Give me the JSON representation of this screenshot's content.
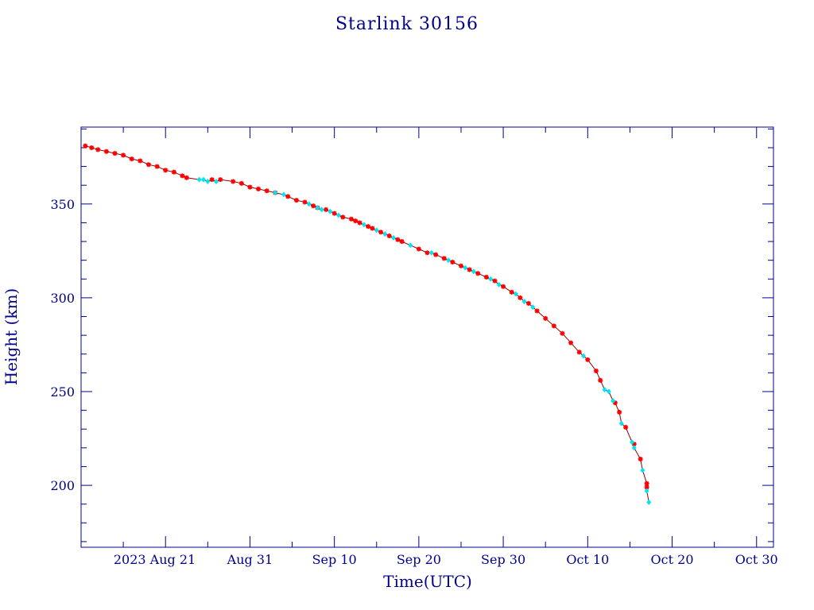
{
  "chart_data": {
    "type": "line",
    "title": "Starlink 30156",
    "xlabel": "Time(UTC)",
    "ylabel": "Height (km)",
    "xlim": [
      "2023-08-11",
      "2023-11-01"
    ],
    "ylim": [
      167,
      391
    ],
    "grid": false,
    "x_ticks": [
      {
        "date": "2023-08-21",
        "label": "2023 Aug 21"
      },
      {
        "date": "2023-08-31",
        "label": "Aug 31"
      },
      {
        "date": "2023-09-10",
        "label": "Sep 10"
      },
      {
        "date": "2023-09-20",
        "label": "Sep 20"
      },
      {
        "date": "2023-09-30",
        "label": "Sep 30"
      },
      {
        "date": "2023-10-10",
        "label": "Oct 10"
      },
      {
        "date": "2023-10-20",
        "label": "Oct 20"
      },
      {
        "date": "2023-10-30",
        "label": "Oct 30"
      }
    ],
    "y_ticks": [
      200,
      250,
      300,
      350
    ],
    "colors": {
      "axis": "#00008b",
      "line": "#8b0000",
      "marker_a": "#ff0000",
      "marker_b": "#00e5ee"
    },
    "series": [
      {
        "marker": "star",
        "color": "#ff0000",
        "points": [
          [
            "2023-08-11 12:00",
            381
          ],
          [
            "2023-08-12 06:00",
            380
          ],
          [
            "2023-08-13 00:00",
            379
          ],
          [
            "2023-08-14 00:00",
            378
          ],
          [
            "2023-08-15 00:00",
            377
          ],
          [
            "2023-08-16 00:00",
            376
          ],
          [
            "2023-08-17 00:00",
            374
          ],
          [
            "2023-08-18 00:00",
            373
          ],
          [
            "2023-08-19 00:00",
            371
          ],
          [
            "2023-08-20 00:00",
            370
          ],
          [
            "2023-08-21 00:00",
            368
          ],
          [
            "2023-08-22 00:00",
            367
          ],
          [
            "2023-08-23 00:00",
            365
          ],
          [
            "2023-08-23 12:00",
            364
          ],
          [
            "2023-08-26 12:00",
            363
          ],
          [
            "2023-08-27 12:00",
            363
          ],
          [
            "2023-08-29 00:00",
            362
          ],
          [
            "2023-08-30 00:00",
            361
          ],
          [
            "2023-08-31 00:00",
            359
          ],
          [
            "2023-09-01 00:00",
            358
          ],
          [
            "2023-09-02 00:00",
            357
          ],
          [
            "2023-09-03 00:00",
            356
          ],
          [
            "2023-09-04 12:00",
            354
          ],
          [
            "2023-09-05 12:00",
            352
          ],
          [
            "2023-09-06 12:00",
            351
          ],
          [
            "2023-09-07 12:00",
            349
          ],
          [
            "2023-09-08 00:00",
            348
          ],
          [
            "2023-09-09 00:00",
            347
          ],
          [
            "2023-09-10 00:00",
            345
          ],
          [
            "2023-09-11 00:00",
            343
          ],
          [
            "2023-09-12 00:00",
            342
          ],
          [
            "2023-09-12 12:00",
            341
          ],
          [
            "2023-09-13 00:00",
            340
          ],
          [
            "2023-09-14 00:00",
            338
          ],
          [
            "2023-09-14 12:00",
            337
          ],
          [
            "2023-09-15 12:00",
            335
          ],
          [
            "2023-09-16 12:00",
            333
          ],
          [
            "2023-09-17 12:00",
            331
          ],
          [
            "2023-09-18 00:00",
            330
          ],
          [
            "2023-09-20 00:00",
            326
          ],
          [
            "2023-09-21 00:00",
            324
          ],
          [
            "2023-09-22 00:00",
            323
          ],
          [
            "2023-09-23 00:00",
            321
          ],
          [
            "2023-09-24 00:00",
            319
          ],
          [
            "2023-09-25 00:00",
            317
          ],
          [
            "2023-09-26 00:00",
            315
          ],
          [
            "2023-09-27 00:00",
            313
          ],
          [
            "2023-09-28 00:00",
            311
          ],
          [
            "2023-09-29 00:00",
            309
          ],
          [
            "2023-09-30 00:00",
            306
          ],
          [
            "2023-10-01 00:00",
            303
          ],
          [
            "2023-10-02 00:00",
            300
          ],
          [
            "2023-10-03 00:00",
            297
          ],
          [
            "2023-10-04 00:00",
            293
          ],
          [
            "2023-10-05 00:00",
            289
          ],
          [
            "2023-10-06 00:00",
            285
          ],
          [
            "2023-10-07 00:00",
            281
          ],
          [
            "2023-10-08 00:00",
            276
          ],
          [
            "2023-10-09 00:00",
            271
          ],
          [
            "2023-10-10 00:00",
            267
          ],
          [
            "2023-10-11 00:00",
            261
          ],
          [
            "2023-10-11 12:00",
            256
          ],
          [
            "2023-10-13 06:00",
            244
          ],
          [
            "2023-10-13 18:00",
            239
          ],
          [
            "2023-10-14 12:00",
            231
          ],
          [
            "2023-10-15 12:00",
            222
          ],
          [
            "2023-10-16 06:00",
            214
          ],
          [
            "2023-10-17 00:00",
            201
          ],
          [
            "2023-10-17 00:00",
            199
          ]
        ]
      },
      {
        "marker": "diamond",
        "color": "#00e5ee",
        "points": [
          [
            "2023-08-25 00:00",
            363
          ],
          [
            "2023-08-25 12:00",
            363
          ],
          [
            "2023-08-26 00:00",
            362
          ],
          [
            "2023-08-27 00:00",
            362
          ],
          [
            "2023-09-03 00:00",
            356
          ],
          [
            "2023-09-04 00:00",
            355
          ],
          [
            "2023-09-07 00:00",
            350
          ],
          [
            "2023-09-08 00:00",
            348
          ],
          [
            "2023-09-08 12:00",
            347
          ],
          [
            "2023-09-09 12:00",
            346
          ],
          [
            "2023-09-10 12:00",
            344
          ],
          [
            "2023-09-13 12:00",
            339
          ],
          [
            "2023-09-15 00:00",
            336
          ],
          [
            "2023-09-16 00:00",
            334
          ],
          [
            "2023-09-17 00:00",
            332
          ],
          [
            "2023-09-19 00:00",
            328
          ],
          [
            "2023-09-21 12:00",
            324
          ],
          [
            "2023-09-23 12:00",
            320
          ],
          [
            "2023-09-25 12:00",
            316
          ],
          [
            "2023-09-26 12:00",
            314
          ],
          [
            "2023-09-28 12:00",
            310
          ],
          [
            "2023-09-29 12:00",
            307
          ],
          [
            "2023-10-01 12:00",
            302
          ],
          [
            "2023-10-02 12:00",
            298
          ],
          [
            "2023-10-03 12:00",
            295
          ],
          [
            "2023-10-09 12:00",
            269
          ],
          [
            "2023-10-12 00:00",
            251
          ],
          [
            "2023-10-12 12:00",
            250
          ],
          [
            "2023-10-13 00:00",
            245
          ],
          [
            "2023-10-14 00:00",
            233
          ],
          [
            "2023-10-15 06:00",
            223
          ],
          [
            "2023-10-15 12:00",
            220
          ],
          [
            "2023-10-16 12:00",
            208
          ],
          [
            "2023-10-17 00:00",
            197
          ],
          [
            "2023-10-17 06:00",
            191
          ]
        ]
      }
    ]
  }
}
